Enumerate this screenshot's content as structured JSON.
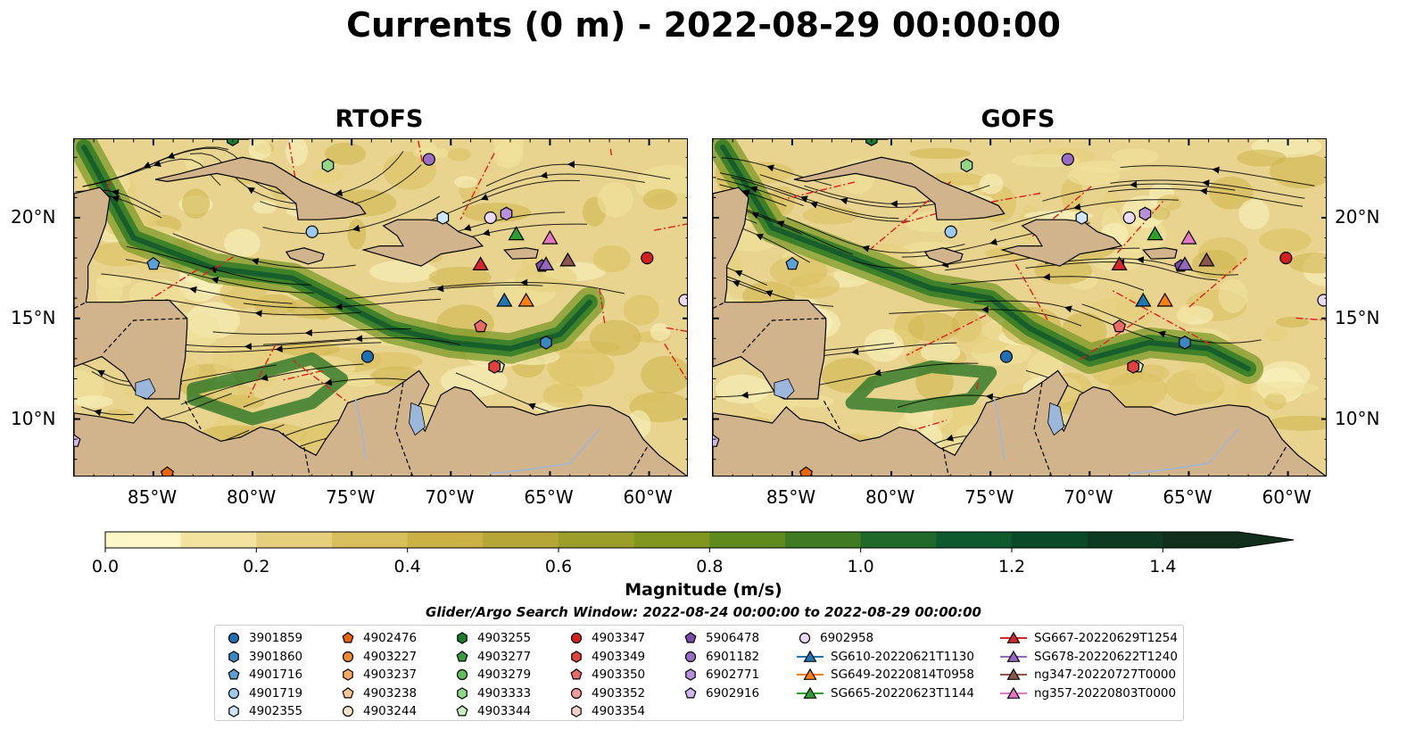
{
  "title": "Currents (0 m) - 2022-08-29 00:00:00",
  "panels": [
    {
      "title": "RTOFS",
      "variant": 0
    },
    {
      "title": "GOFS",
      "variant": 1
    }
  ],
  "axes": {
    "lon_labels": [
      "85°W",
      "80°W",
      "75°W",
      "70°W",
      "65°W",
      "60°W"
    ],
    "lon_values": [
      -85,
      -80,
      -75,
      -70,
      -65,
      -60
    ],
    "lat_labels": [
      "20°N",
      "15°N",
      "10°N"
    ],
    "lat_values": [
      20,
      15,
      10
    ],
    "lon_range": [
      -89,
      -58
    ],
    "lat_range": [
      7.1,
      23.9
    ]
  },
  "colorbar": {
    "label": "Magnitude (m/s)",
    "ticks": [
      "0.0",
      "0.2",
      "0.4",
      "0.6",
      "0.8",
      "1.0",
      "1.2",
      "1.4"
    ],
    "tick_values": [
      0,
      0.2,
      0.4,
      0.6,
      0.8,
      1.0,
      1.2,
      1.4
    ],
    "range": [
      0,
      1.5
    ],
    "extend": "max",
    "colors": [
      "#fdf7c8",
      "#f2e4a0",
      "#e6cf7c",
      "#d9be5c",
      "#cbb144",
      "#b6a636",
      "#9c9e2a",
      "#80961f",
      "#5f8a1e",
      "#3e7b22",
      "#1f6a2a",
      "#0e5a2e",
      "#0b4a29",
      "#0d3b22",
      "#10301c"
    ]
  },
  "search_window": "Glider/Argo Search Window: 2022-08-24 00:00:00 to 2022-08-29 00:00:00",
  "legend": {
    "columns": [
      [
        {
          "label": "3901859",
          "marker": "circle",
          "color": "#1f6fb5"
        },
        {
          "label": "3901860",
          "marker": "hexagon",
          "color": "#3b87c4"
        },
        {
          "label": "4901716",
          "marker": "pentagon",
          "color": "#5aa0d8"
        },
        {
          "label": "4901719",
          "marker": "circle",
          "color": "#9ccaf0"
        },
        {
          "label": "4902355",
          "marker": "hexagon",
          "color": "#cfe5fa"
        }
      ],
      [
        {
          "label": "4902476",
          "marker": "pentagon",
          "color": "#e8650a"
        },
        {
          "label": "4903227",
          "marker": "circle",
          "color": "#f28a2e"
        },
        {
          "label": "4903237",
          "marker": "hexagon",
          "color": "#f6a95f"
        },
        {
          "label": "4903238",
          "marker": "pentagon",
          "color": "#f9c693"
        },
        {
          "label": "4903244",
          "marker": "circle",
          "color": "#fde3c6"
        }
      ],
      [
        {
          "label": "4903255",
          "marker": "hexagon",
          "color": "#1c7c2c"
        },
        {
          "label": "4903277",
          "marker": "pentagon",
          "color": "#3b9a3f"
        },
        {
          "label": "4903279",
          "marker": "circle",
          "color": "#61bd5c"
        },
        {
          "label": "4903333",
          "marker": "hexagon",
          "color": "#93d68a"
        },
        {
          "label": "4903344",
          "marker": "pentagon",
          "color": "#c9eec1"
        }
      ],
      [
        {
          "label": "4903347",
          "marker": "circle",
          "color": "#d21f1f"
        },
        {
          "label": "4903349",
          "marker": "hexagon",
          "color": "#e0413c"
        },
        {
          "label": "4903350",
          "marker": "pentagon",
          "color": "#ea6b66"
        },
        {
          "label": "4903352",
          "marker": "circle",
          "color": "#f29b97"
        },
        {
          "label": "4903354",
          "marker": "hexagon",
          "color": "#f9cfcb"
        }
      ],
      [
        {
          "label": "5906478",
          "marker": "pentagon",
          "color": "#7b4aa8"
        },
        {
          "label": "6901182",
          "marker": "circle",
          "color": "#9a6cc4"
        },
        {
          "label": "6902771",
          "marker": "hexagon",
          "color": "#b690db"
        },
        {
          "label": "6902916",
          "marker": "pentagon",
          "color": "#d0b6ec"
        }
      ],
      [
        {
          "label": "6902958",
          "marker": "circle",
          "color": "#ead9f8"
        },
        {
          "label": "SG610-20220621T1130",
          "marker": "triangle",
          "color": "#1f77b4"
        },
        {
          "label": "SG649-20220814T0958",
          "marker": "triangle",
          "color": "#ff7f0e"
        },
        {
          "label": "SG665-20220623T1144",
          "marker": "triangle",
          "color": "#2ca02c"
        }
      ],
      [
        {
          "label": "SG667-20220629T1254",
          "marker": "triangle",
          "color": "#d62728"
        },
        {
          "label": "SG678-20220622T1240",
          "marker": "triangle",
          "color": "#9467bd"
        },
        {
          "label": "ng347-20220727T0000",
          "marker": "triangle",
          "color": "#8c564b"
        },
        {
          "label": "ng357-20220803T0000",
          "marker": "triangle",
          "color": "#e377c2"
        }
      ]
    ]
  },
  "floats": [
    {
      "id": "3901859",
      "lon": -74.2,
      "lat": 13.1,
      "marker": "circle",
      "color": "#1f6fb5"
    },
    {
      "id": "3901860",
      "lon": -65.2,
      "lat": 13.8,
      "marker": "hexagon",
      "color": "#3b87c4"
    },
    {
      "id": "4901716",
      "lon": -85.0,
      "lat": 17.7,
      "marker": "pentagon",
      "color": "#5aa0d8"
    },
    {
      "id": "4901719",
      "lon": -77.0,
      "lat": 19.3,
      "marker": "circle",
      "color": "#9ccaf0"
    },
    {
      "id": "4902355",
      "lon": -70.4,
      "lat": 20.0,
      "marker": "hexagon",
      "color": "#cfe5fa"
    },
    {
      "id": "4902476",
      "lon": -84.3,
      "lat": 7.3,
      "marker": "pentagon",
      "color": "#e8650a"
    },
    {
      "id": "4903255",
      "lon": -81.0,
      "lat": 23.9,
      "marker": "hexagon",
      "color": "#1c7c2c"
    },
    {
      "id": "4903333",
      "lon": -76.2,
      "lat": 22.6,
      "marker": "hexagon",
      "color": "#93d68a"
    },
    {
      "id": "4903344",
      "lon": -67.6,
      "lat": 12.6,
      "marker": "pentagon",
      "color": "#c9eec1"
    },
    {
      "id": "4903347",
      "lon": -60.1,
      "lat": 18.0,
      "marker": "circle",
      "color": "#d21f1f"
    },
    {
      "id": "4903349",
      "lon": -67.8,
      "lat": 12.6,
      "marker": "hexagon",
      "color": "#e0413c"
    },
    {
      "id": "4903350",
      "lon": -68.5,
      "lat": 14.6,
      "marker": "pentagon",
      "color": "#ea6b66"
    },
    {
      "id": "5906478",
      "lon": -65.4,
      "lat": 17.6,
      "marker": "pentagon",
      "color": "#7b4aa8"
    },
    {
      "id": "6901182",
      "lon": -71.1,
      "lat": 22.9,
      "marker": "circle",
      "color": "#9a6cc4"
    },
    {
      "id": "6902771",
      "lon": -67.2,
      "lat": 20.2,
      "marker": "hexagon",
      "color": "#b690db"
    },
    {
      "id": "6902916",
      "lon": -89.0,
      "lat": 8.9,
      "marker": "pentagon",
      "color": "#d0b6ec"
    },
    {
      "id": "6902958",
      "lon": -68.0,
      "lat": 20.0,
      "marker": "circle",
      "color": "#ead9f8"
    },
    {
      "id": "6902958b",
      "lon": -58.2,
      "lat": 15.9,
      "marker": "circle",
      "color": "#ead9f8"
    },
    {
      "id": "SG610-20220621T1130",
      "lon": -67.3,
      "lat": 15.9,
      "marker": "triangle",
      "color": "#1f77b4"
    },
    {
      "id": "SG649-20220814T0958",
      "lon": -66.2,
      "lat": 15.9,
      "marker": "triangle",
      "color": "#ff7f0e"
    },
    {
      "id": "SG665-20220623T1144",
      "lon": -66.7,
      "lat": 19.2,
      "marker": "triangle",
      "color": "#2ca02c"
    },
    {
      "id": "SG667-20220629T1254",
      "lon": -68.5,
      "lat": 17.7,
      "marker": "triangle",
      "color": "#d62728"
    },
    {
      "id": "SG678-20220622T1240",
      "lon": -65.2,
      "lat": 17.7,
      "marker": "triangle",
      "color": "#9467bd"
    },
    {
      "id": "ng347-20220727T0000",
      "lon": -64.1,
      "lat": 17.9,
      "marker": "triangle",
      "color": "#8c564b"
    },
    {
      "id": "ng357-20220803T0000",
      "lon": -65.0,
      "lat": 19.0,
      "marker": "triangle",
      "color": "#e377c2"
    }
  ]
}
